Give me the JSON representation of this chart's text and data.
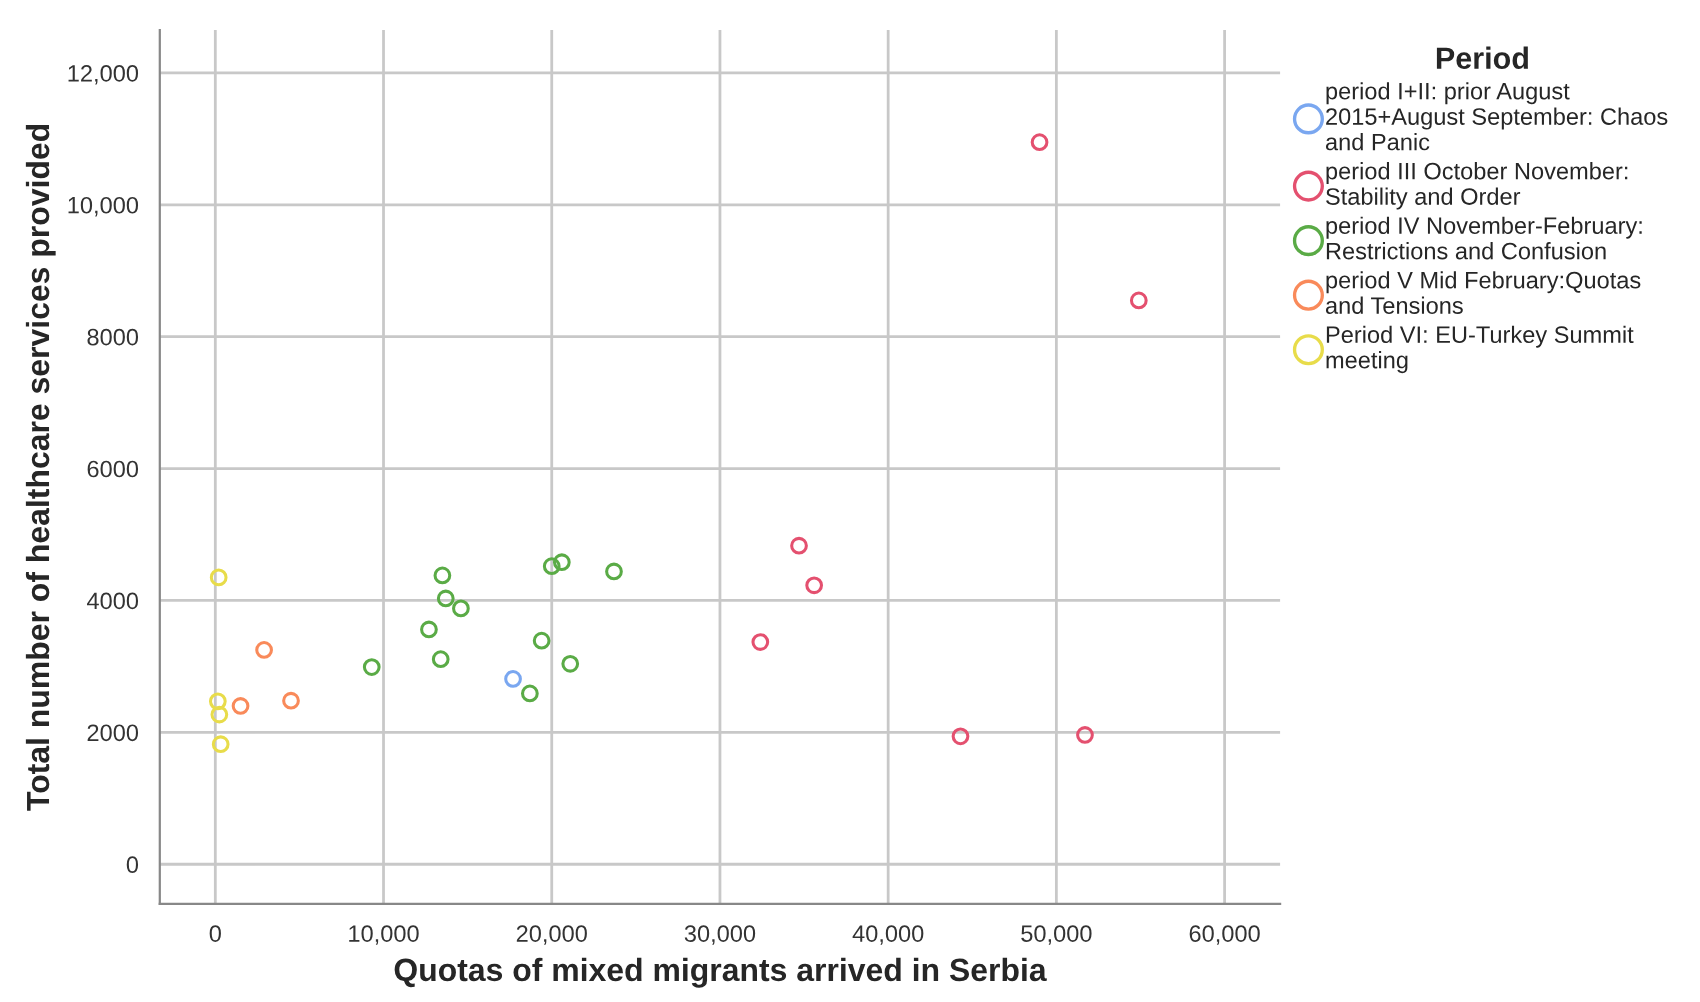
{
  "chart_data": {
    "type": "scatter",
    "xlabel": "Quotas of mixed migrants arrived in Serbia",
    "ylabel": "Total number of healthcare services provided",
    "legend_title": "Period",
    "legend": "top right",
    "grid": true,
    "marker": "circle",
    "xlim": [
      -3300,
      63300
    ],
    "ylim": [
      -600,
      12650
    ],
    "xticks": [
      0,
      {
        "value": 10000,
        "label": "10,000"
      },
      {
        "value": 20000,
        "label": "20,000"
      },
      {
        "value": 30000,
        "label": "30,000"
      },
      {
        "value": 40000,
        "label": "40,000"
      },
      {
        "value": 50000,
        "label": "50,000"
      },
      {
        "value": 60000,
        "label": "60,000"
      }
    ],
    "yticks": [
      0,
      2000,
      4000,
      6000,
      8000,
      {
        "value": 10000,
        "label": "10,000"
      },
      {
        "value": 12000,
        "label": "12,000"
      }
    ],
    "series": [
      {
        "name": "period I+II: prior August\n2015+August September: Chaos\nand Panic",
        "color": "#7aa7f0",
        "x": [
          17700
        ],
        "values": [
          2810
        ]
      },
      {
        "name": "period III October November:\nStability and Order",
        "color": "#e4506f",
        "x": [
          49000,
          54900,
          34700,
          35600,
          32400,
          44300,
          51700
        ],
        "values": [
          10950,
          8550,
          4830,
          4230,
          3370,
          1940,
          1960
        ]
      },
      {
        "name": "period IV November-February:\nRestrictions and Confusion",
        "color": "#5aab46",
        "x": [
          9300,
          13500,
          13700,
          14600,
          12700,
          13400,
          20000,
          20600,
          23700,
          19400,
          21100,
          18700
        ],
        "values": [
          2990,
          4380,
          4030,
          3880,
          3560,
          3110,
          4520,
          4580,
          4440,
          3390,
          3040,
          2590
        ]
      },
      {
        "name": "period V Mid February:Quotas\nand Tensions",
        "color": "#f98a5a",
        "x": [
          2900,
          1500,
          4500
        ],
        "values": [
          3250,
          2400,
          2480
        ]
      },
      {
        "name": "Period VI: EU-Turkey Summit\nmeeting",
        "color": "#e8dc4a",
        "x": [
          200,
          150,
          240,
          320
        ],
        "values": [
          4350,
          2470,
          2270,
          1820
        ]
      }
    ]
  }
}
